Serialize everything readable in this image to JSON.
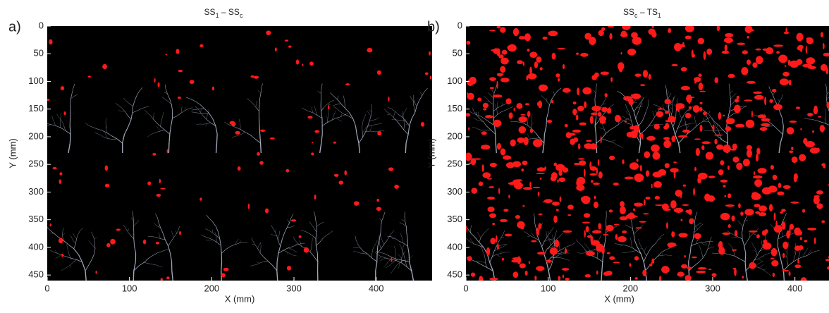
{
  "chart_data": [
    {
      "type": "image",
      "panel_label": "a)",
      "title": [
        {
          "text": "SS"
        },
        {
          "text": "1",
          "sub": true
        },
        {
          "text": " – SS"
        },
        {
          "text": "c",
          "sub": true
        }
      ],
      "xlabel": "X (mm)",
      "ylabel": "Y (mm)",
      "xlim": [
        0,
        468
      ],
      "ylim": [
        460,
        0
      ],
      "xticks": [
        0,
        100,
        200,
        300,
        400
      ],
      "yticks": [
        0,
        50,
        100,
        150,
        200,
        250,
        300,
        350,
        400,
        450
      ],
      "background": "#000000",
      "channel_color": "#c8d2e6",
      "change_color": "#ff1a1a"
    },
    {
      "type": "image",
      "panel_label": "b)",
      "title": [
        {
          "text": "SS"
        },
        {
          "text": "c",
          "sub": true
        },
        {
          "text": " – TS"
        },
        {
          "text": "1",
          "sub": true
        }
      ],
      "xlabel": "X (mm)",
      "ylabel": "Y (mm)",
      "xlim": [
        0,
        468
      ],
      "ylim": [
        460,
        0
      ],
      "xticks": [
        0,
        100,
        200,
        300,
        400
      ],
      "yticks": [
        0,
        50,
        100,
        150,
        200,
        250,
        300,
        350,
        400,
        450
      ],
      "background": "#000000",
      "channel_color": "#c8d2e6",
      "change_color": "#ff1a1a"
    }
  ]
}
